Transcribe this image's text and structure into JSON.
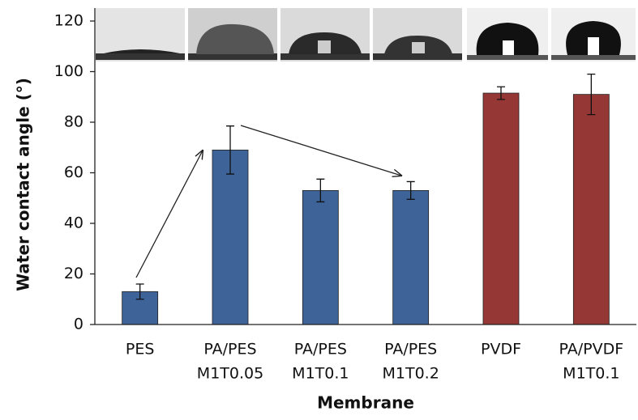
{
  "chart_data": {
    "type": "bar",
    "y_label": "Water contact angle (°)",
    "x_label": "Membrane",
    "categories": [
      [
        "PES"
      ],
      [
        "PA/PES",
        "M1T0.05"
      ],
      [
        "PA/PES",
        "M1T0.1"
      ],
      [
        "PA/PES",
        "M1T0.2"
      ],
      [
        "PVDF"
      ],
      [
        "PA/PVDF",
        "M1T0.1"
      ]
    ],
    "values": [
      13,
      69,
      53,
      53,
      91.5,
      91
    ],
    "errors": [
      3,
      9.5,
      4.5,
      3.5,
      2.5,
      8
    ],
    "colors": [
      "#3d6399",
      "#3d6399",
      "#3d6399",
      "#3d6399",
      "#953735",
      "#953735"
    ],
    "ylim": [
      0,
      120
    ],
    "yticks": [
      0,
      20,
      40,
      60,
      80,
      100,
      120
    ]
  }
}
